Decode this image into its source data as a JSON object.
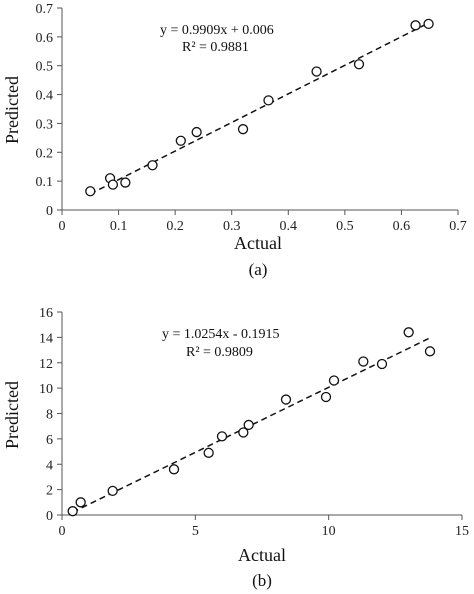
{
  "chart_data": [
    {
      "id": "a",
      "type": "scatter",
      "caption": "(a)",
      "xlabel": "Actual",
      "ylabel": "Predicted",
      "xlim": [
        0,
        0.7
      ],
      "ylim": [
        0,
        0.7
      ],
      "xticks": [
        "0",
        "0.1",
        "0.2",
        "0.3",
        "0.4",
        "0.5",
        "0.6",
        "0.7"
      ],
      "yticks": [
        "0",
        "0.1",
        "0.2",
        "0.3",
        "0.4",
        "0.5",
        "0.6",
        "0.7"
      ],
      "grid": false,
      "points": [
        {
          "x": 0.05,
          "y": 0.065
        },
        {
          "x": 0.085,
          "y": 0.11
        },
        {
          "x": 0.09,
          "y": 0.088
        },
        {
          "x": 0.112,
          "y": 0.095
        },
        {
          "x": 0.16,
          "y": 0.155
        },
        {
          "x": 0.21,
          "y": 0.24
        },
        {
          "x": 0.238,
          "y": 0.27
        },
        {
          "x": 0.32,
          "y": 0.28
        },
        {
          "x": 0.365,
          "y": 0.38
        },
        {
          "x": 0.45,
          "y": 0.48
        },
        {
          "x": 0.525,
          "y": 0.505
        },
        {
          "x": 0.625,
          "y": 0.64
        },
        {
          "x": 0.648,
          "y": 0.645
        }
      ],
      "trendline": {
        "slope": 0.9909,
        "intercept": 0.006,
        "x_range": [
          0.05,
          0.65
        ]
      },
      "equation": "y = 0.9909x + 0.006",
      "r_squared": "R² = 0.9881"
    },
    {
      "id": "b",
      "type": "scatter",
      "caption": "(b)",
      "xlabel": "Actual",
      "ylabel": "Predicted",
      "xlim": [
        0,
        15
      ],
      "ylim": [
        0,
        16
      ],
      "xticks": [
        "0",
        "5",
        "10",
        "15"
      ],
      "yticks": [
        "0",
        "2",
        "4",
        "6",
        "8",
        "10",
        "12",
        "14",
        "16"
      ],
      "grid": false,
      "points": [
        {
          "x": 0.4,
          "y": 0.3
        },
        {
          "x": 0.7,
          "y": 1.0
        },
        {
          "x": 1.9,
          "y": 1.9
        },
        {
          "x": 4.2,
          "y": 3.6
        },
        {
          "x": 5.5,
          "y": 4.9
        },
        {
          "x": 6.0,
          "y": 6.2
        },
        {
          "x": 6.8,
          "y": 6.5
        },
        {
          "x": 7.0,
          "y": 7.1
        },
        {
          "x": 8.4,
          "y": 9.1
        },
        {
          "x": 9.9,
          "y": 9.3
        },
        {
          "x": 10.2,
          "y": 10.6
        },
        {
          "x": 11.3,
          "y": 12.1
        },
        {
          "x": 12.0,
          "y": 11.9
        },
        {
          "x": 13.0,
          "y": 14.4
        },
        {
          "x": 13.8,
          "y": 12.9
        }
      ],
      "trendline": {
        "slope": 1.0254,
        "intercept": -0.1915,
        "x_range": [
          0.4,
          13.8
        ]
      },
      "equation": "y = 1.0254x - 0.1915",
      "r_squared": "R² = 0.9809"
    }
  ]
}
